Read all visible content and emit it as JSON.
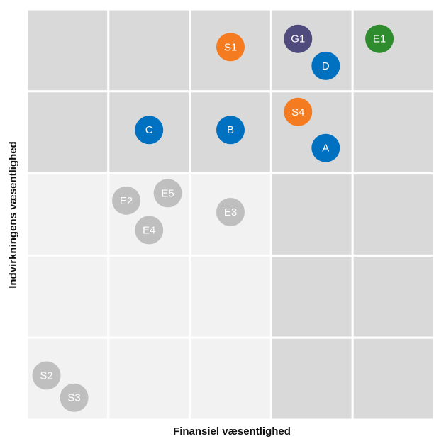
{
  "chart_data": {
    "type": "scatter",
    "title": "",
    "xlabel": "Finansiel væsentlighed",
    "ylabel": "Indvirkningens væsentlighed",
    "grid_columns": 5,
    "grid_rows": 5,
    "xlim": [
      0,
      5
    ],
    "ylim": [
      0,
      5
    ],
    "colors": {
      "cell_dark": "#d9d9d9",
      "cell_light": "#f2f2f2",
      "grid_line": "#ffffff",
      "blue": "#0070c0",
      "orange": "#f47b20",
      "purple": "#4f4c7d",
      "green": "#2e8b2e",
      "gray": "#bfbfbf"
    },
    "cells": [
      [
        "dark",
        "dark",
        "dark",
        "dark",
        "dark"
      ],
      [
        "dark",
        "dark",
        "dark",
        "dark",
        "dark"
      ],
      [
        "light",
        "light",
        "light",
        "dark",
        "dark"
      ],
      [
        "light",
        "light",
        "light",
        "dark",
        "dark"
      ],
      [
        "light",
        "light",
        "light",
        "dark",
        "dark"
      ]
    ],
    "points": [
      {
        "label": "S1",
        "x": 2.5,
        "y": 4.54,
        "color": "orange"
      },
      {
        "label": "G1",
        "x": 3.33,
        "y": 4.64,
        "color": "purple"
      },
      {
        "label": "D",
        "x": 3.67,
        "y": 4.31,
        "color": "blue"
      },
      {
        "label": "E1",
        "x": 4.33,
        "y": 4.64,
        "color": "green"
      },
      {
        "label": "C",
        "x": 1.5,
        "y": 3.53,
        "color": "blue"
      },
      {
        "label": "B",
        "x": 2.5,
        "y": 3.53,
        "color": "blue"
      },
      {
        "label": "S4",
        "x": 3.33,
        "y": 3.75,
        "color": "orange"
      },
      {
        "label": "A",
        "x": 3.67,
        "y": 3.31,
        "color": "blue"
      },
      {
        "label": "E2",
        "x": 1.22,
        "y": 2.67,
        "color": "gray"
      },
      {
        "label": "E5",
        "x": 1.73,
        "y": 2.76,
        "color": "gray"
      },
      {
        "label": "E4",
        "x": 1.5,
        "y": 2.31,
        "color": "gray"
      },
      {
        "label": "E3",
        "x": 2.5,
        "y": 2.53,
        "color": "gray"
      },
      {
        "label": "S2",
        "x": 0.24,
        "y": 0.54,
        "color": "gray"
      },
      {
        "label": "S3",
        "x": 0.58,
        "y": 0.27,
        "color": "gray"
      }
    ]
  }
}
